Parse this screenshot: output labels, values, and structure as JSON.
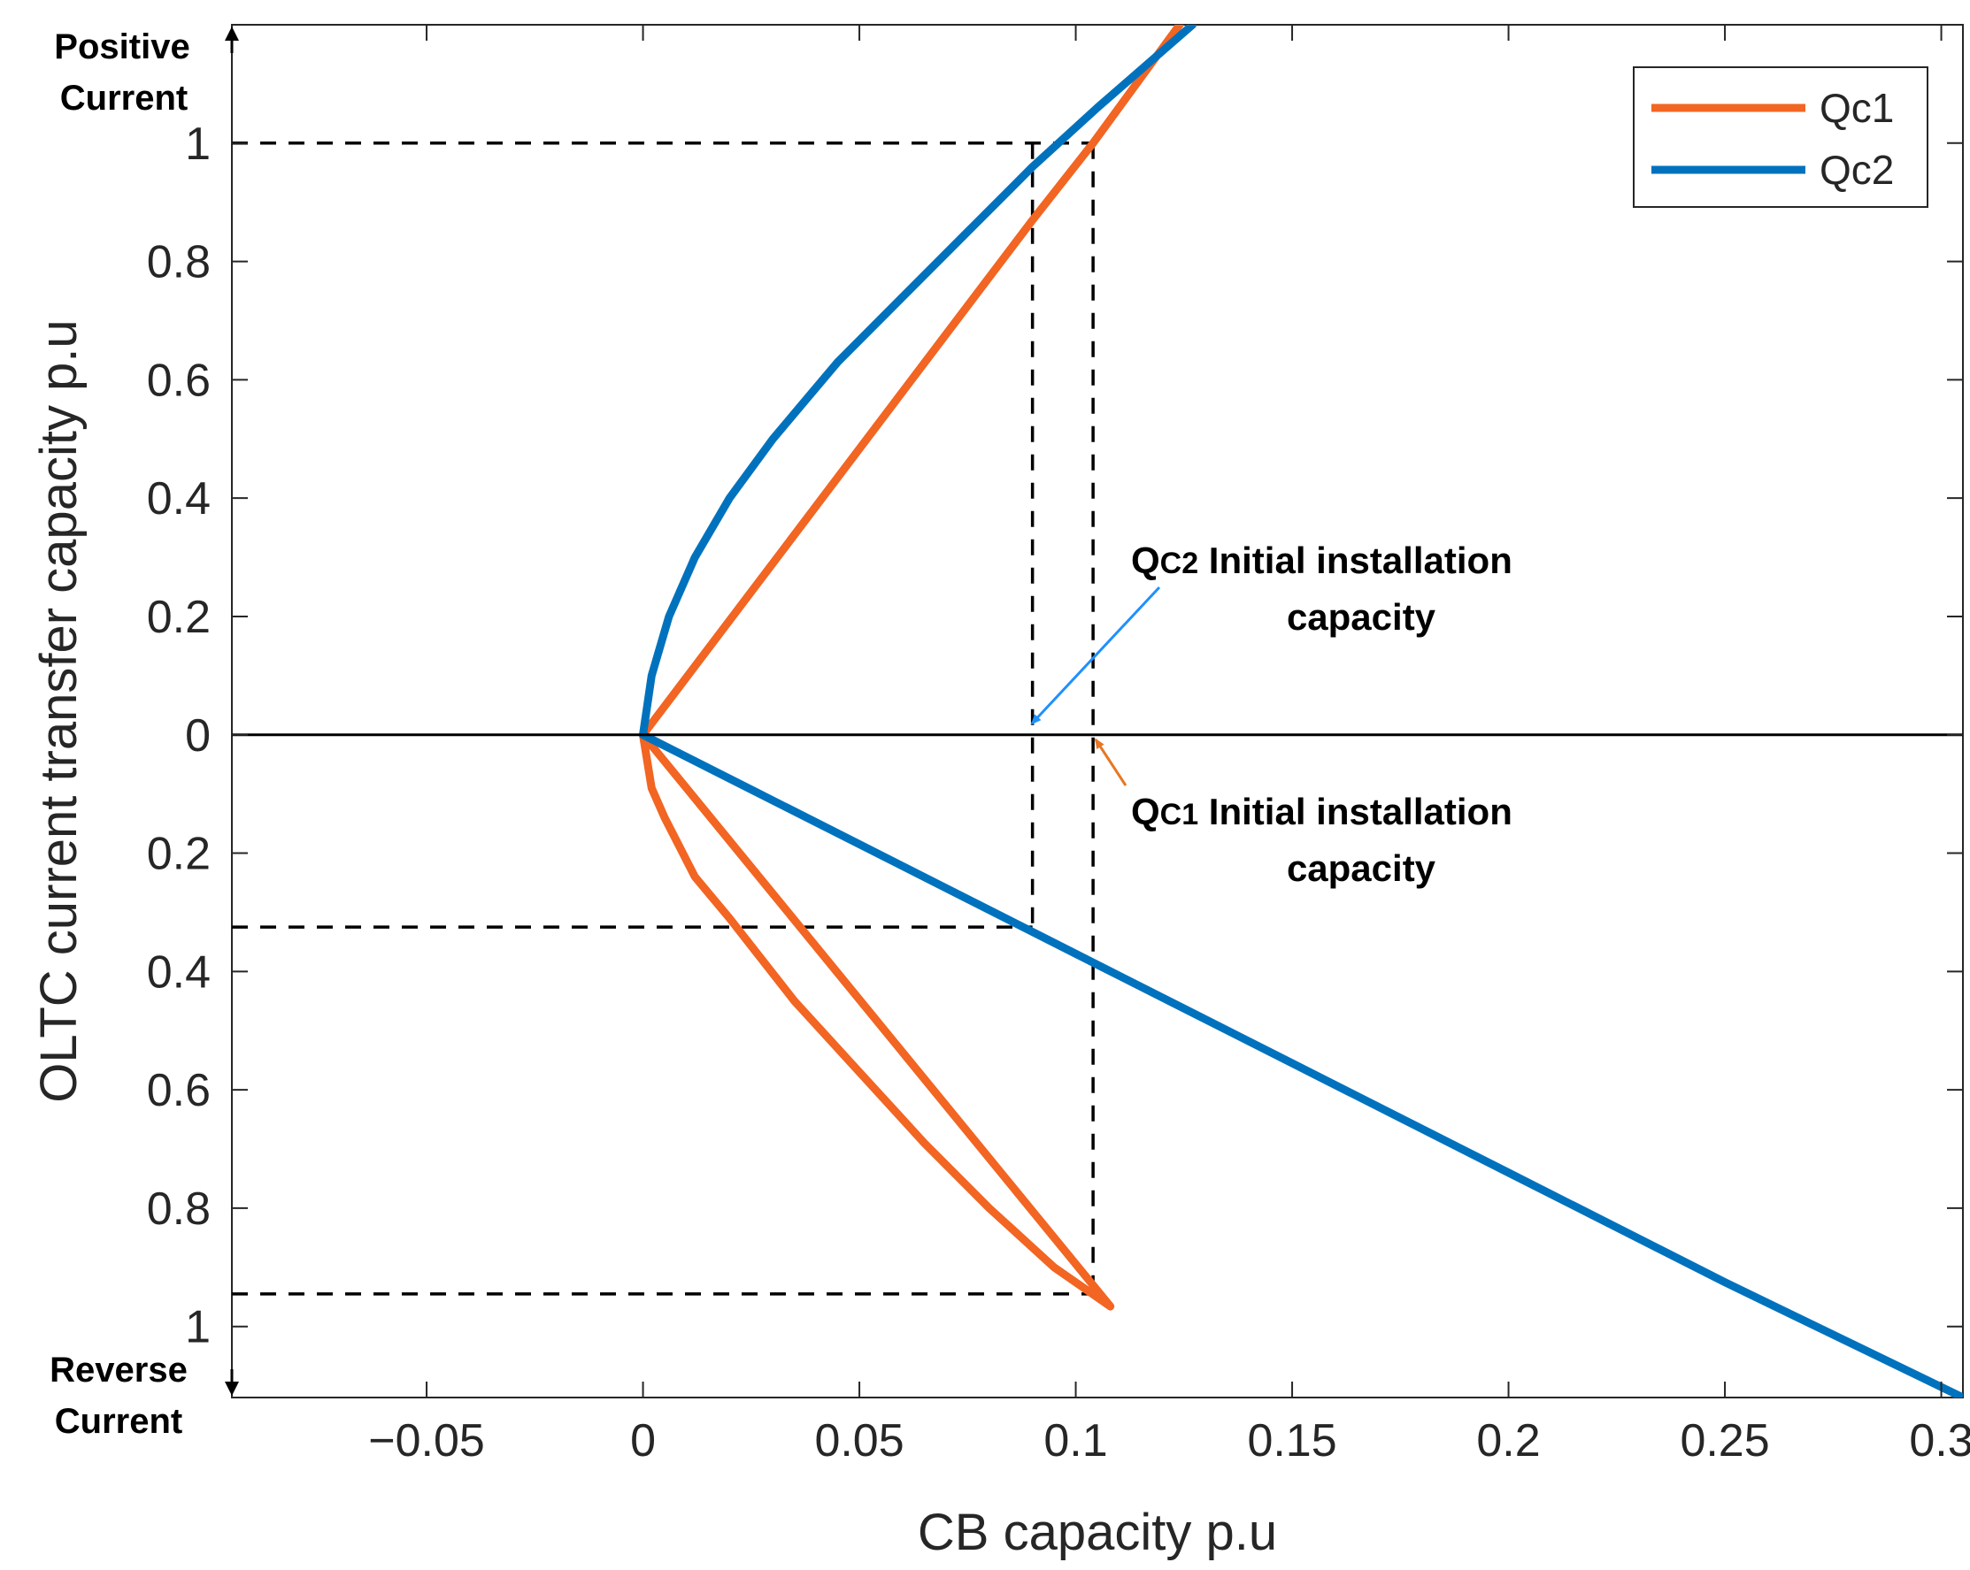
{
  "chart_data": {
    "type": "line",
    "xlabel": "CB   capacity p.u",
    "ylabel": "OLTC current transfer capacity p.u",
    "xlim": [
      -0.095,
      0.305
    ],
    "ylim": [
      -1.12,
      1.2
    ],
    "x_ticks": [
      -0.05,
      0,
      0.05,
      0.1,
      0.15,
      0.2,
      0.25,
      0.3
    ],
    "x_tick_labels": [
      "−0.05",
      "0",
      "0.05",
      "0.1",
      "0.15",
      "0.2",
      "0.25",
      "0.3"
    ],
    "y_ticks": [
      1,
      0.8,
      0.6,
      0.4,
      0.2,
      0,
      -0.2,
      -0.4,
      -0.6,
      -0.8,
      -1
    ],
    "y_tick_labels": [
      "1",
      "0.8",
      "0.6",
      "0.4",
      "0.2",
      "0",
      "0.2",
      "0.4",
      "0.6",
      "0.8",
      "1"
    ],
    "direction_labels": {
      "top": [
        "Positive",
        "Current"
      ],
      "bottom": [
        "Reverse",
        "Current"
      ]
    },
    "grid": false,
    "legend_position": "top-right",
    "series": [
      {
        "name": "Qc1",
        "color": "#f26522",
        "x": [
          0,
          0.03,
          0.06,
          0.09,
          0.104,
          0.124,
          0.108,
          0.095,
          0.08,
          0.065,
          0.05,
          0.035,
          0.02,
          0.012,
          0.005,
          0.002,
          0
        ],
        "y": [
          0,
          0.29,
          0.58,
          0.87,
          1.0,
          1.2,
          -0.966,
          -0.9,
          -0.8,
          -0.69,
          -0.57,
          -0.45,
          -0.31,
          -0.24,
          -0.14,
          -0.09,
          0
        ]
      },
      {
        "name": "Qc2",
        "color": "#0072bd",
        "x": [
          0,
          0.002,
          0.006,
          0.012,
          0.02,
          0.03,
          0.045,
          0.06,
          0.075,
          0.09,
          0.105,
          0.127,
          0.05,
          0.1,
          0.15,
          0.2,
          0.25,
          0.305
        ],
        "y": [
          0,
          0.1,
          0.2,
          0.3,
          0.4,
          0.5,
          0.63,
          0.74,
          0.85,
          0.96,
          1.06,
          1.2,
          -0.185,
          -0.37,
          -0.555,
          -0.74,
          -0.925,
          -1.12
        ]
      }
    ],
    "annotations": [
      {
        "label": "Q",
        "sub": "C2",
        "text": " Initial installation",
        "line2": "capacity",
        "points_to": [
          0.09,
          0
        ]
      },
      {
        "label": "Q",
        "sub": "C1",
        "text": " Initial installation",
        "line2": "capacity",
        "points_to": [
          0.105,
          0
        ]
      }
    ],
    "reference_lines": {
      "Qc2_x": 0.09,
      "Qc1_x": 0.104,
      "Qc2_y_top": 1.0,
      "Qc2_y_bottom": -0.325,
      "Qc1_y_top": 1.0,
      "Qc1_y_bottom": -0.945
    }
  }
}
